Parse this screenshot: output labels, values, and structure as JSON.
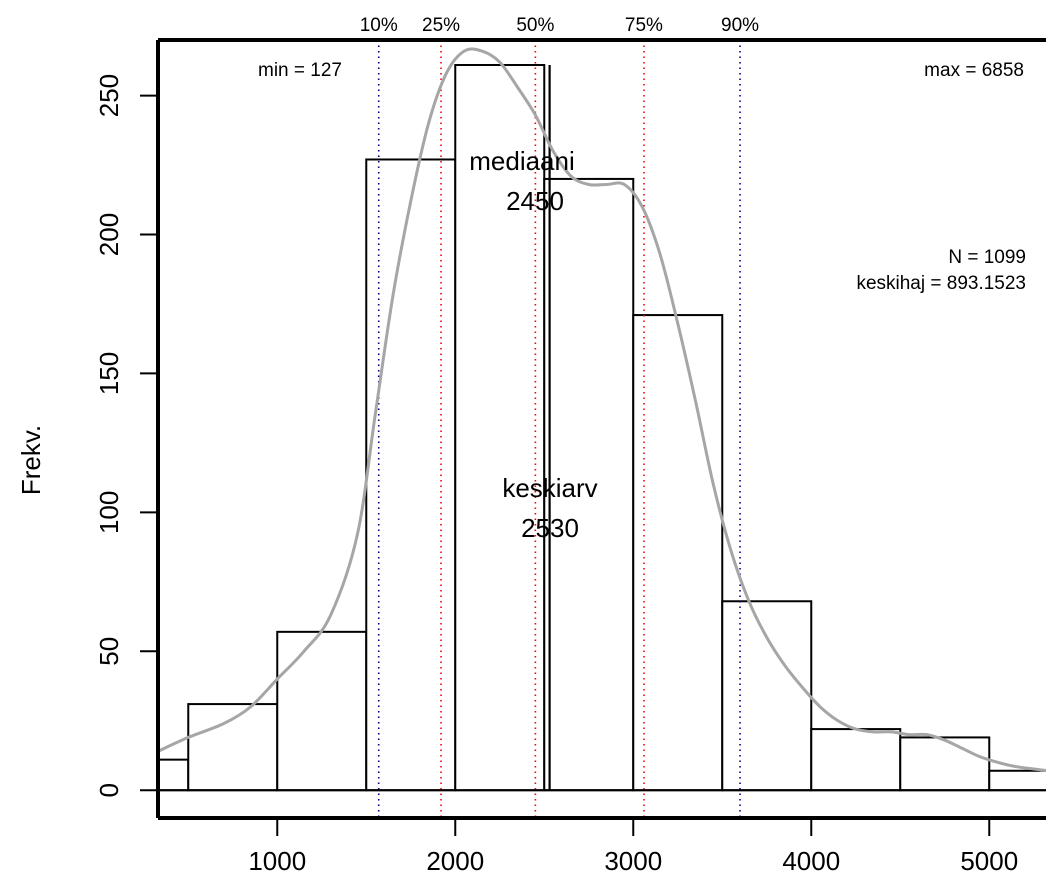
{
  "chart_data": {
    "type": "bar",
    "ylabel": "Frekv.",
    "xlim": [
      330,
      5330
    ],
    "ylim": [
      -10,
      270
    ],
    "x_ticks": [
      1000,
      2000,
      3000,
      4000,
      5000
    ],
    "y_ticks": [
      0,
      50,
      100,
      150,
      200,
      250
    ],
    "bins": [
      {
        "from": 0,
        "to": 500,
        "count": 11
      },
      {
        "from": 500,
        "to": 1000,
        "count": 31
      },
      {
        "from": 1000,
        "to": 1500,
        "count": 57
      },
      {
        "from": 1500,
        "to": 2000,
        "count": 227
      },
      {
        "from": 2000,
        "to": 2500,
        "count": 261
      },
      {
        "from": 2500,
        "to": 3000,
        "count": 220
      },
      {
        "from": 3000,
        "to": 3500,
        "count": 171
      },
      {
        "from": 3500,
        "to": 4000,
        "count": 68
      },
      {
        "from": 4000,
        "to": 4500,
        "count": 22
      },
      {
        "from": 4500,
        "to": 5000,
        "count": 19
      },
      {
        "from": 5000,
        "to": 5500,
        "count": 7
      }
    ],
    "density_curve": [
      [
        330,
        14
      ],
      [
        500,
        19
      ],
      [
        700,
        24
      ],
      [
        850,
        30
      ],
      [
        1000,
        40
      ],
      [
        1150,
        50
      ],
      [
        1300,
        63
      ],
      [
        1450,
        92
      ],
      [
        1550,
        135
      ],
      [
        1650,
        178
      ],
      [
        1750,
        212
      ],
      [
        1850,
        240
      ],
      [
        1950,
        258
      ],
      [
        2050,
        266
      ],
      [
        2150,
        266
      ],
      [
        2250,
        262
      ],
      [
        2350,
        253
      ],
      [
        2450,
        243
      ],
      [
        2550,
        230
      ],
      [
        2650,
        221
      ],
      [
        2750,
        218
      ],
      [
        2850,
        218
      ],
      [
        2950,
        218
      ],
      [
        3050,
        210
      ],
      [
        3150,
        193
      ],
      [
        3250,
        168
      ],
      [
        3350,
        140
      ],
      [
        3450,
        110
      ],
      [
        3550,
        86
      ],
      [
        3650,
        68
      ],
      [
        3750,
        55
      ],
      [
        3850,
        45
      ],
      [
        3950,
        37
      ],
      [
        4050,
        30
      ],
      [
        4150,
        25
      ],
      [
        4250,
        22
      ],
      [
        4350,
        21
      ],
      [
        4450,
        21
      ],
      [
        4550,
        20
      ],
      [
        4650,
        20
      ],
      [
        4750,
        18
      ],
      [
        4850,
        15
      ],
      [
        4950,
        12
      ],
      [
        5050,
        10
      ],
      [
        5150,
        8.5
      ],
      [
        5330,
        7
      ]
    ],
    "quantile_lines": [
      {
        "label": "10%",
        "value": 1570,
        "color": "#00008b"
      },
      {
        "label": "25%",
        "value": 1920,
        "color": "#ff0000"
      },
      {
        "label": "50%",
        "value": 2450,
        "color": "#ff0000"
      },
      {
        "label": "75%",
        "value": 3060,
        "color": "#ff0000"
      },
      {
        "label": "90%",
        "value": 3600,
        "color": "#00008b"
      }
    ],
    "annotations": {
      "min": "min = 127",
      "max": "max = 6858",
      "n": "N = 1099",
      "sd": "keskihaj = 893.1523",
      "median_label": "mediaani",
      "median_value": "2450",
      "mean_label": "keskiarv",
      "mean_value": "2530"
    },
    "colors": {
      "bars_fill": "#ffffff",
      "bars_stroke": "#000000",
      "curve": "#a6a6a6",
      "mean_line": "#000000"
    },
    "mean_value": 2530
  }
}
